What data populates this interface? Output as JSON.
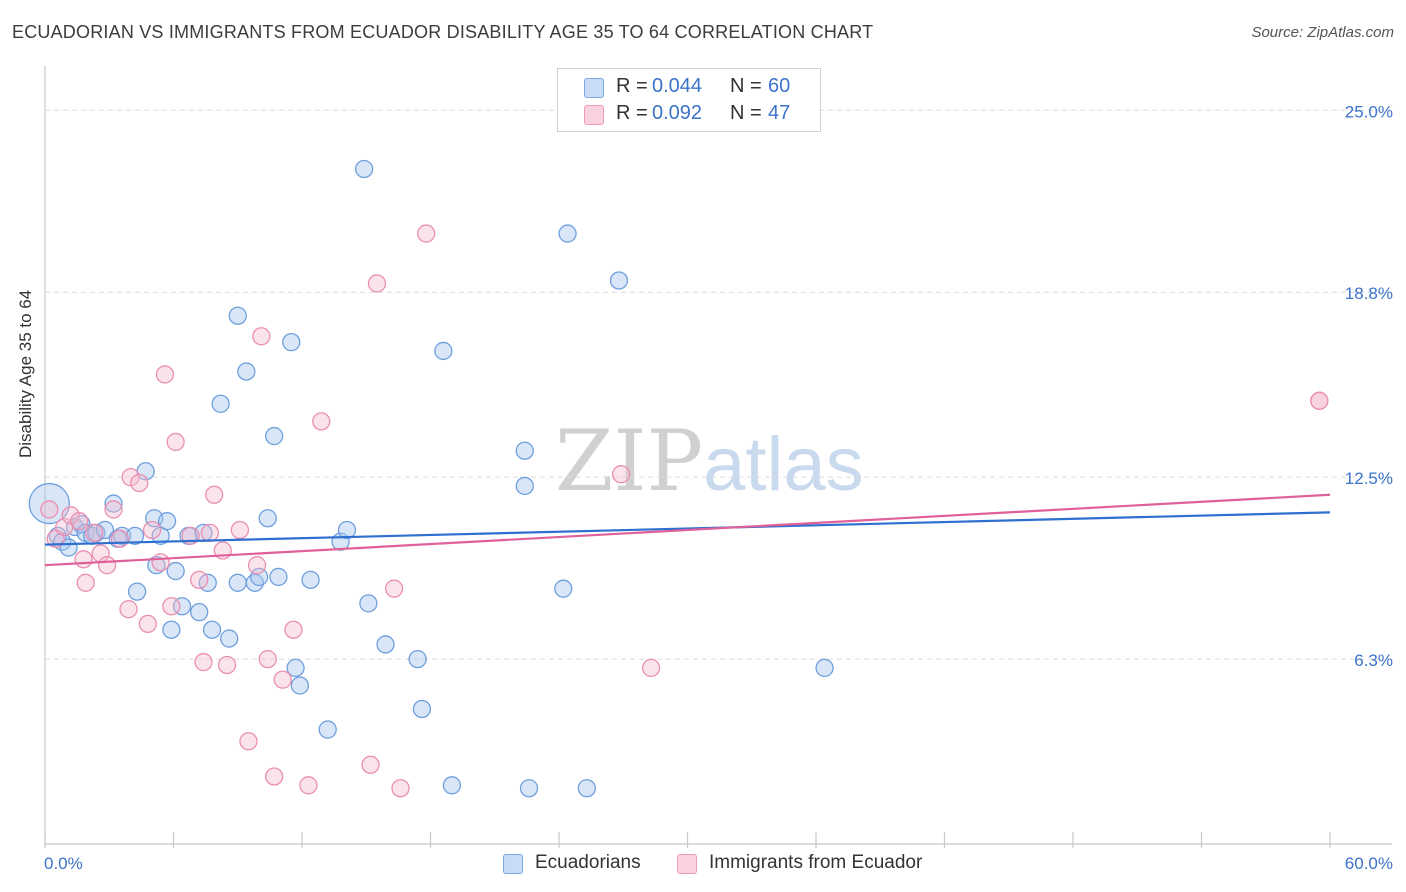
{
  "header": {
    "title": "ECUADORIAN VS IMMIGRANTS FROM ECUADOR DISABILITY AGE 35 TO 64 CORRELATION CHART",
    "source": "Source: ZipAtlas.com"
  },
  "watermark": {
    "zip": "ZIP",
    "atlas": "atlas"
  },
  "legend_top": {
    "rows": [
      {
        "r_label": "R =",
        "r_value": "0.044",
        "n_label": "N =",
        "n_value": "60",
        "color": "#a9c8f0"
      },
      {
        "r_label": "R =",
        "r_value": "0.092",
        "n_label": "N =",
        "n_value": "47",
        "color": "#f5b8cc"
      }
    ]
  },
  "legend_bottom": {
    "items": [
      {
        "label": "Ecuadorians",
        "color": "#a9c8f0"
      },
      {
        "label": "Immigrants from Ecuador",
        "color": "#f5b8cc"
      }
    ]
  },
  "chart_data": {
    "type": "scatter",
    "title": "ECUADORIAN VS IMMIGRANTS FROM ECUADOR DISABILITY AGE 35 TO 64 CORRELATION CHART",
    "xlabel": "",
    "ylabel": "Disability Age 35 to 64",
    "xlim": [
      0,
      60
    ],
    "ylim": [
      0,
      26.1
    ],
    "x_tick_labels": [
      {
        "value": 0,
        "label": "0.0%"
      },
      {
        "value": 60,
        "label": "60.0%"
      }
    ],
    "y_tick_labels": [
      {
        "value": 6.3,
        "label": "6.3%"
      },
      {
        "value": 12.5,
        "label": "12.5%"
      },
      {
        "value": 18.8,
        "label": "18.8%"
      },
      {
        "value": 25.0,
        "label": "25.0%"
      }
    ],
    "grid": true,
    "legend_position": "bottom",
    "colors": {
      "blue": "#4a86d8",
      "blue_fill": "#a9c8f0",
      "pink": "#e26e98",
      "pink_fill": "#f5b8cc",
      "blue_line": "#2e6fcf",
      "pink_line": "#e0609a",
      "tick_text": "#3b73c8"
    },
    "series": [
      {
        "name": "Ecuadorians",
        "color": "#4a86d8",
        "trend": {
          "x": [
            0,
            60
          ],
          "y": [
            10.2,
            11.3
          ]
        },
        "points": [
          {
            "x": 0.2,
            "y": 11.6,
            "big": true
          },
          {
            "x": 0.6,
            "y": 10.5
          },
          {
            "x": 0.8,
            "y": 10.3
          },
          {
            "x": 1.1,
            "y": 10.1
          },
          {
            "x": 1.4,
            "y": 10.8
          },
          {
            "x": 1.7,
            "y": 10.9
          },
          {
            "x": 1.9,
            "y": 10.6
          },
          {
            "x": 2.2,
            "y": 10.5
          },
          {
            "x": 2.4,
            "y": 10.6
          },
          {
            "x": 2.8,
            "y": 10.7
          },
          {
            "x": 3.2,
            "y": 11.6
          },
          {
            "x": 3.4,
            "y": 10.4
          },
          {
            "x": 3.6,
            "y": 10.5
          },
          {
            "x": 4.2,
            "y": 10.5
          },
          {
            "x": 4.3,
            "y": 8.6
          },
          {
            "x": 4.7,
            "y": 12.7
          },
          {
            "x": 5.1,
            "y": 11.1
          },
          {
            "x": 5.2,
            "y": 9.5
          },
          {
            "x": 5.4,
            "y": 10.5
          },
          {
            "x": 5.7,
            "y": 11.0
          },
          {
            "x": 5.9,
            "y": 7.3
          },
          {
            "x": 6.1,
            "y": 9.3
          },
          {
            "x": 6.4,
            "y": 8.1
          },
          {
            "x": 6.7,
            "y": 10.5
          },
          {
            "x": 7.2,
            "y": 7.9
          },
          {
            "x": 7.4,
            "y": 10.6
          },
          {
            "x": 7.6,
            "y": 8.9
          },
          {
            "x": 7.8,
            "y": 7.3
          },
          {
            "x": 8.2,
            "y": 15.0
          },
          {
            "x": 8.6,
            "y": 7.0
          },
          {
            "x": 9.0,
            "y": 8.9
          },
          {
            "x": 9.0,
            "y": 18.0
          },
          {
            "x": 9.4,
            "y": 16.1
          },
          {
            "x": 9.8,
            "y": 8.9
          },
          {
            "x": 10.0,
            "y": 9.1
          },
          {
            "x": 10.4,
            "y": 11.1
          },
          {
            "x": 10.7,
            "y": 13.9
          },
          {
            "x": 10.9,
            "y": 9.1
          },
          {
            "x": 11.5,
            "y": 17.1
          },
          {
            "x": 11.7,
            "y": 6.0
          },
          {
            "x": 11.9,
            "y": 5.4
          },
          {
            "x": 12.4,
            "y": 9.0
          },
          {
            "x": 13.2,
            "y": 3.9
          },
          {
            "x": 13.8,
            "y": 10.3
          },
          {
            "x": 14.1,
            "y": 10.7
          },
          {
            "x": 14.9,
            "y": 23.0
          },
          {
            "x": 15.1,
            "y": 8.2
          },
          {
            "x": 15.9,
            "y": 6.8
          },
          {
            "x": 17.4,
            "y": 6.3
          },
          {
            "x": 17.6,
            "y": 4.6
          },
          {
            "x": 18.6,
            "y": 16.8
          },
          {
            "x": 19.0,
            "y": 2.0
          },
          {
            "x": 22.4,
            "y": 13.4
          },
          {
            "x": 22.4,
            "y": 12.2
          },
          {
            "x": 22.6,
            "y": 1.9
          },
          {
            "x": 24.2,
            "y": 8.7
          },
          {
            "x": 24.4,
            "y": 20.8
          },
          {
            "x": 25.3,
            "y": 1.9
          },
          {
            "x": 26.8,
            "y": 19.2
          },
          {
            "x": 36.4,
            "y": 6.0
          }
        ]
      },
      {
        "name": "Immigrants from Ecuador",
        "color": "#e26e98",
        "trend": {
          "x": [
            0,
            60
          ],
          "y": [
            9.5,
            11.9
          ]
        },
        "points": [
          {
            "x": 0.2,
            "y": 11.4
          },
          {
            "x": 0.5,
            "y": 10.4
          },
          {
            "x": 0.9,
            "y": 10.8
          },
          {
            "x": 1.2,
            "y": 11.2
          },
          {
            "x": 1.6,
            "y": 11.0
          },
          {
            "x": 1.8,
            "y": 9.7
          },
          {
            "x": 1.9,
            "y": 8.9
          },
          {
            "x": 2.3,
            "y": 10.6
          },
          {
            "x": 2.6,
            "y": 9.9
          },
          {
            "x": 2.9,
            "y": 9.5
          },
          {
            "x": 3.2,
            "y": 11.4
          },
          {
            "x": 3.5,
            "y": 10.4
          },
          {
            "x": 3.9,
            "y": 8.0
          },
          {
            "x": 4.0,
            "y": 12.5
          },
          {
            "x": 4.4,
            "y": 12.3
          },
          {
            "x": 4.8,
            "y": 7.5
          },
          {
            "x": 5.0,
            "y": 10.7
          },
          {
            "x": 5.4,
            "y": 9.6
          },
          {
            "x": 5.6,
            "y": 16.0
          },
          {
            "x": 5.9,
            "y": 8.1
          },
          {
            "x": 6.1,
            "y": 13.7
          },
          {
            "x": 6.8,
            "y": 10.5
          },
          {
            "x": 7.2,
            "y": 9.0
          },
          {
            "x": 7.4,
            "y": 6.2
          },
          {
            "x": 7.7,
            "y": 10.6
          },
          {
            "x": 7.9,
            "y": 11.9
          },
          {
            "x": 8.3,
            "y": 10.0
          },
          {
            "x": 8.5,
            "y": 6.1
          },
          {
            "x": 9.1,
            "y": 10.7
          },
          {
            "x": 9.5,
            "y": 3.5
          },
          {
            "x": 9.9,
            "y": 9.5
          },
          {
            "x": 10.1,
            "y": 17.3
          },
          {
            "x": 10.4,
            "y": 6.3
          },
          {
            "x": 10.7,
            "y": 2.3
          },
          {
            "x": 11.1,
            "y": 5.6
          },
          {
            "x": 11.6,
            "y": 7.3
          },
          {
            "x": 12.3,
            "y": 2.0
          },
          {
            "x": 12.9,
            "y": 14.4
          },
          {
            "x": 15.2,
            "y": 2.7
          },
          {
            "x": 15.5,
            "y": 19.1
          },
          {
            "x": 16.3,
            "y": 8.7
          },
          {
            "x": 16.6,
            "y": 1.9
          },
          {
            "x": 17.8,
            "y": 20.8
          },
          {
            "x": 26.9,
            "y": 12.6
          },
          {
            "x": 28.3,
            "y": 6.0
          },
          {
            "x": 59.5,
            "y": 15.1
          },
          {
            "x": 59.5,
            "y": 15.1
          }
        ]
      }
    ]
  }
}
